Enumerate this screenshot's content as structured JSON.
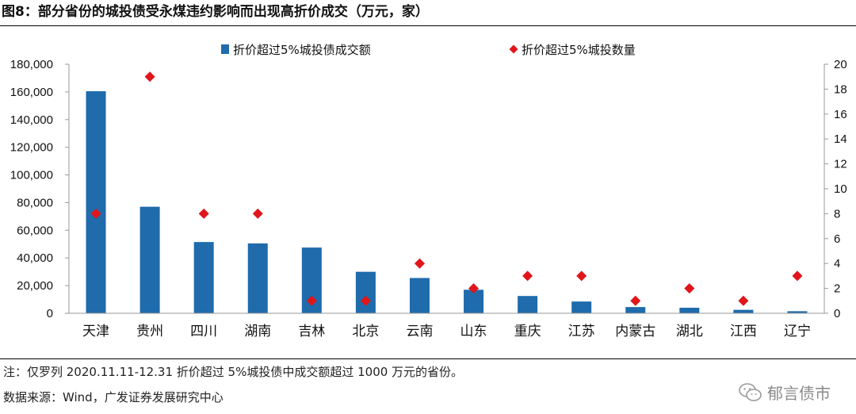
{
  "header": {
    "title": "图8：部分省份的城投债受永煤违约影响而出现高折价成交（万元，家）"
  },
  "footer": {
    "note": "注：仅罗列 2020.11.11-12.31 折价超过 5%城投债中成交额超过 1000 万元的省份。",
    "source": "数据来源：Wind，广发证券发展研究中心",
    "watermark": "郁言债市"
  },
  "colors": {
    "bar": "#1f6bab",
    "marker": "#e0161b",
    "axis": "#9a9a9a"
  },
  "chart_data": {
    "type": "bar",
    "title": "",
    "xlabel": "",
    "ylabel": "",
    "categories": [
      "天津",
      "贵州",
      "四川",
      "湖南",
      "吉林",
      "北京",
      "云南",
      "山东",
      "重庆",
      "江苏",
      "内蒙古",
      "湖北",
      "江西",
      "辽宁"
    ],
    "series": [
      {
        "name": "折价超过5%城投债成交额",
        "type": "bar",
        "axis": "left",
        "values": [
          160500,
          77000,
          51500,
          50500,
          47500,
          30000,
          25500,
          17000,
          12500,
          8500,
          4500,
          4000,
          2500,
          1500
        ]
      },
      {
        "name": "折价超过5%城投数量",
        "type": "scatter",
        "axis": "right",
        "marker": "diamond",
        "values": [
          8,
          19,
          8,
          8,
          1,
          1,
          4,
          2,
          3,
          3,
          1,
          2,
          1,
          3
        ]
      }
    ],
    "ylim": [
      0,
      180000
    ],
    "y_ticks": [
      "0",
      "20,000",
      "40,000",
      "60,000",
      "80,000",
      "100,000",
      "120,000",
      "140,000",
      "160,000",
      "180,000"
    ],
    "y2lim": [
      0,
      20
    ],
    "y2_ticks": [
      "0",
      "2",
      "4",
      "6",
      "8",
      "10",
      "12",
      "14",
      "16",
      "18",
      "20"
    ],
    "legend": "top",
    "grid": false
  }
}
